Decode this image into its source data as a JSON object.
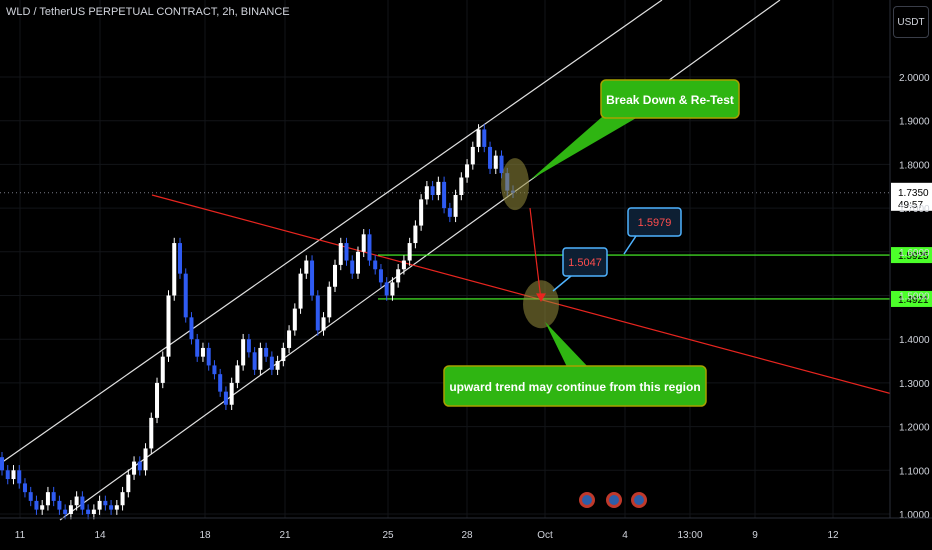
{
  "symbol_title": "WLD / TetherUS PERPETUAL CONTRACT, 2h, BINANCE",
  "currency": "USDT",
  "chart_data": {
    "type": "candlestick",
    "price_axis": {
      "ticks": [
        "2.0000",
        "1.9000",
        "1.8000",
        "1.7000",
        "1.6000",
        "1.5000",
        "1.4000",
        "1.3000",
        "1.2000",
        "1.1000",
        "1.0000"
      ],
      "range": [
        1.0,
        2.06
      ]
    },
    "time_axis": {
      "ticks": [
        "11",
        "14",
        "18",
        "21",
        "25",
        "28",
        "Oct",
        "4",
        "13:00",
        "9",
        "12"
      ]
    },
    "last_price": {
      "value": 1.735,
      "label": "1.7350",
      "countdown": "49:57",
      "color": "#2a2e39"
    },
    "levels": [
      {
        "value": 1.5925,
        "label": "1.5925",
        "color": "#4cff2a"
      },
      {
        "value": 1.4921,
        "label": "1.4921",
        "color": "#4cff2a"
      }
    ],
    "price_callouts": [
      {
        "value": 1.5047,
        "label": "1.5047"
      },
      {
        "value": 1.5979,
        "label": "1.5979"
      }
    ],
    "annotations": [
      {
        "text": "Break Down & Re-Test",
        "color": "#2fb512"
      },
      {
        "text": "upward trend may continue from this region",
        "color": "#2fb512"
      }
    ],
    "candles_summary": {
      "start_time": "11",
      "end_time": "28",
      "low": 1.0,
      "high": 1.89,
      "last": 1.735
    },
    "colors": {
      "up": "#ffffff",
      "down": "#2f5bf2",
      "trendline": "#e0e0e0",
      "resistance": "#e8251f"
    }
  }
}
